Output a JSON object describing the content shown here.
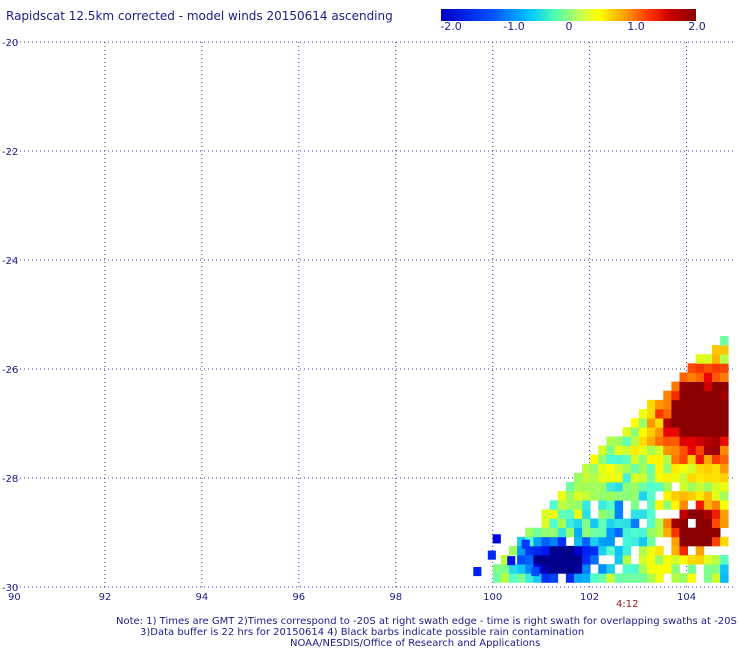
{
  "title": "Rapidscat 12.5km corrected - model winds 20150614 ascending",
  "colorbar": {
    "labels": [
      "-2.0",
      "-1.0",
      "0",
      "1.0",
      "2.0"
    ],
    "values": [
      -2.0,
      -1.0,
      0,
      1.0,
      2.0
    ],
    "colors": [
      "#0000c8",
      "#00c8ff",
      "#ffff00",
      "#ff5000",
      "#8b0000"
    ]
  },
  "chart_data": {
    "type": "heatmap",
    "title": "Rapidscat 12.5km corrected - model winds 20150614 ascending",
    "x_range": [
      90,
      105
    ],
    "y_range": [
      -30,
      -20
    ],
    "x_ticks": [
      "90",
      "92",
      "94",
      "96",
      "98",
      "100",
      "102",
      "104"
    ],
    "y_ticks": [
      "-20",
      "-22",
      "-24",
      "-26",
      "-28",
      "-30"
    ],
    "value_range": [
      -2.0,
      2.0
    ],
    "grid": "dotted",
    "swath_time": "4:12",
    "approx_regions": [
      {
        "area": "lon 103.5-105, lat -27.8 to -26",
        "value": 2.0
      },
      {
        "area": "lon 103.5-105, lat -29.5 to -28.6",
        "value": 2.0
      },
      {
        "area": "lon 102-103.5, lat -29.5 to -28.3",
        "value": 0.0
      },
      {
        "area": "lon 101-102.5, lat -30 to -29",
        "value": -2.0
      }
    ]
  },
  "notes": {
    "line1": "Note: 1) Times are GMT 2)Times correspond to -20S at right swath edge - time is right swath for overlapping swaths at -20S",
    "line2": "3)Data buffer is 22 hrs for 20150614 4) Black barbs indicate possible rain contamination",
    "line3": "NOAA/NESDIS/Office of Research and Applications"
  },
  "time_label": "4:12"
}
